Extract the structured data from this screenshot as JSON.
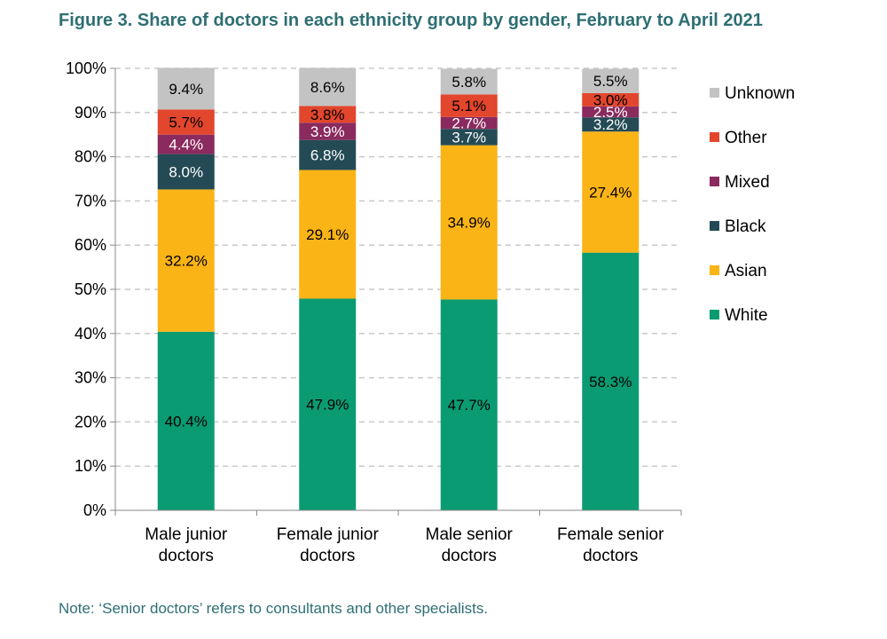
{
  "title": "Figure 3. Share of doctors in each ethnicity group by gender, February to April 2021",
  "note": "Note: ‘Senior doctors’ refers to consultants and other specialists.",
  "chart_data": {
    "type": "bar",
    "stacked": true,
    "ylim": [
      0,
      100
    ],
    "yticks": [
      "0%",
      "10%",
      "20%",
      "30%",
      "40%",
      "50%",
      "60%",
      "70%",
      "80%",
      "90%",
      "100%"
    ],
    "grid": "horizontal dashed",
    "legend_position": "right",
    "categories": [
      [
        "Male junior",
        "doctors"
      ],
      [
        "Female junior",
        "doctors"
      ],
      [
        "Male senior",
        "doctors"
      ],
      [
        "Female senior",
        "doctors"
      ]
    ],
    "series": [
      {
        "name": "White",
        "color": "#0a9b72",
        "label_color": "#000000",
        "values": [
          40.4,
          47.9,
          47.7,
          58.3
        ]
      },
      {
        "name": "Asian",
        "color": "#fbb416",
        "label_color": "#000000",
        "values": [
          32.2,
          29.1,
          34.9,
          27.4
        ]
      },
      {
        "name": "Black",
        "color": "#244b55",
        "label_color": "#ffffff",
        "values": [
          8.0,
          6.8,
          3.7,
          3.2
        ]
      },
      {
        "name": "Mixed",
        "color": "#8a2a5e",
        "label_color": "#ffffff",
        "values": [
          4.4,
          3.9,
          2.7,
          2.5
        ]
      },
      {
        "name": "Other",
        "color": "#e2462c",
        "label_color": "#000000",
        "values": [
          5.7,
          3.8,
          5.1,
          3.0
        ]
      },
      {
        "name": "Unknown",
        "color": "#c3c3c3",
        "label_color": "#000000",
        "values": [
          9.4,
          8.6,
          5.8,
          5.5
        ]
      }
    ],
    "data_labels": [
      [
        "40.4%",
        "47.9%",
        "47.7%",
        "58.3%"
      ],
      [
        "32.2%",
        "29.1%",
        "34.9%",
        "27.4%"
      ],
      [
        "8.0%",
        "6.8%",
        "3.7%",
        "3.2%"
      ],
      [
        "4.4%",
        "3.9%",
        "2.7%",
        "2.5%"
      ],
      [
        "5.7%",
        "3.8%",
        "5.1%",
        "3.0%"
      ],
      [
        "9.4%",
        "8.6%",
        "5.8%",
        "5.5%"
      ]
    ]
  }
}
